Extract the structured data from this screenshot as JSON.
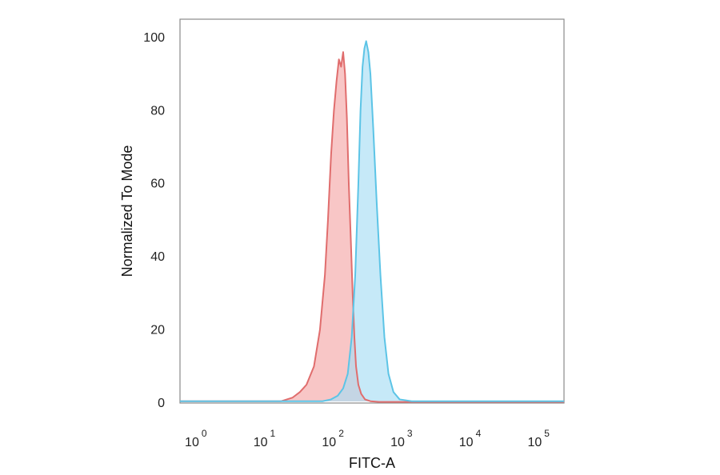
{
  "chart_data": {
    "type": "area",
    "title": "",
    "xlabel": "FITC-A",
    "ylabel": "Normalized To Mode",
    "x_scale": "log10",
    "xlim": [
      0.5,
      200000
    ],
    "ylim": [
      0,
      105
    ],
    "y_ticks": [
      0,
      20,
      40,
      60,
      80,
      100
    ],
    "x_ticks": [
      {
        "value": 1,
        "base": "10",
        "exp": "0"
      },
      {
        "value": 10,
        "base": "10",
        "exp": "1"
      },
      {
        "value": 100,
        "base": "10",
        "exp": "2"
      },
      {
        "value": 1000,
        "base": "10",
        "exp": "3"
      },
      {
        "value": 10000,
        "base": "10",
        "exp": "4"
      },
      {
        "value": 100000,
        "base": "10",
        "exp": "5"
      }
    ],
    "grid": false,
    "series": [
      {
        "color": "#e06d6d",
        "fill": "#f4a8a8",
        "x": [
          0.5,
          15,
          22,
          28,
          35,
          45,
          55,
          65,
          72,
          80,
          88,
          96,
          104,
          112,
          120,
          128,
          136,
          145,
          155,
          165,
          175,
          185,
          200,
          220,
          250,
          300,
          400,
          1000,
          200000
        ],
        "y": [
          0.5,
          0.5,
          1.5,
          3,
          5,
          10,
          20,
          35,
          50,
          68,
          80,
          88,
          94,
          92,
          96,
          90,
          78,
          60,
          45,
          30,
          18,
          10,
          5,
          2.5,
          1,
          0.5,
          0.3,
          0.3,
          0.3
        ]
      },
      {
        "color": "#5cc4e6",
        "fill": "#a8ddf4",
        "x": [
          0.5,
          60,
          80,
          100,
          120,
          140,
          160,
          180,
          200,
          215,
          230,
          245,
          260,
          280,
          300,
          330,
          370,
          420,
          480,
          550,
          650,
          800,
          1200,
          200000
        ],
        "y": [
          0.5,
          0.5,
          1,
          2,
          4,
          8,
          18,
          35,
          60,
          80,
          92,
          97,
          99,
          96,
          90,
          75,
          55,
          35,
          18,
          8,
          3,
          1,
          0.5,
          0.5
        ]
      }
    ]
  }
}
